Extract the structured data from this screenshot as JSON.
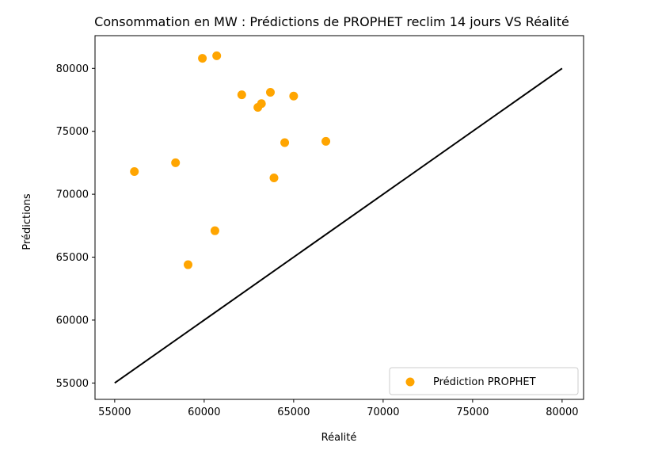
{
  "chart_data": {
    "type": "scatter",
    "title": "Consommation en MW : Prédictions de PROPHET reclim 14 jours VS Réalité",
    "xlabel": "Réalité",
    "ylabel": "Prédictions",
    "xlim": [
      53900,
      81200
    ],
    "ylim": [
      53700,
      82600
    ],
    "xticks": [
      55000,
      60000,
      65000,
      70000,
      75000,
      80000
    ],
    "yticks": [
      55000,
      60000,
      65000,
      70000,
      75000,
      80000
    ],
    "grid": false,
    "legend_position": "bottom-right",
    "series": [
      {
        "name": "Prédiction PROPHET",
        "color": "#ffa500",
        "points": [
          {
            "x": 56100,
            "y": 71800
          },
          {
            "x": 58400,
            "y": 72500
          },
          {
            "x": 59100,
            "y": 64400
          },
          {
            "x": 59900,
            "y": 80800
          },
          {
            "x": 60600,
            "y": 67100
          },
          {
            "x": 60700,
            "y": 81000
          },
          {
            "x": 62100,
            "y": 77900
          },
          {
            "x": 63000,
            "y": 76900
          },
          {
            "x": 63200,
            "y": 77200
          },
          {
            "x": 63700,
            "y": 78100
          },
          {
            "x": 63900,
            "y": 71300
          },
          {
            "x": 64500,
            "y": 74100
          },
          {
            "x": 65000,
            "y": 77800
          },
          {
            "x": 66800,
            "y": 74200
          }
        ]
      }
    ],
    "reference_line": {
      "x": [
        55000,
        80000
      ],
      "y": [
        55000,
        80000
      ],
      "color": "#000000"
    }
  }
}
